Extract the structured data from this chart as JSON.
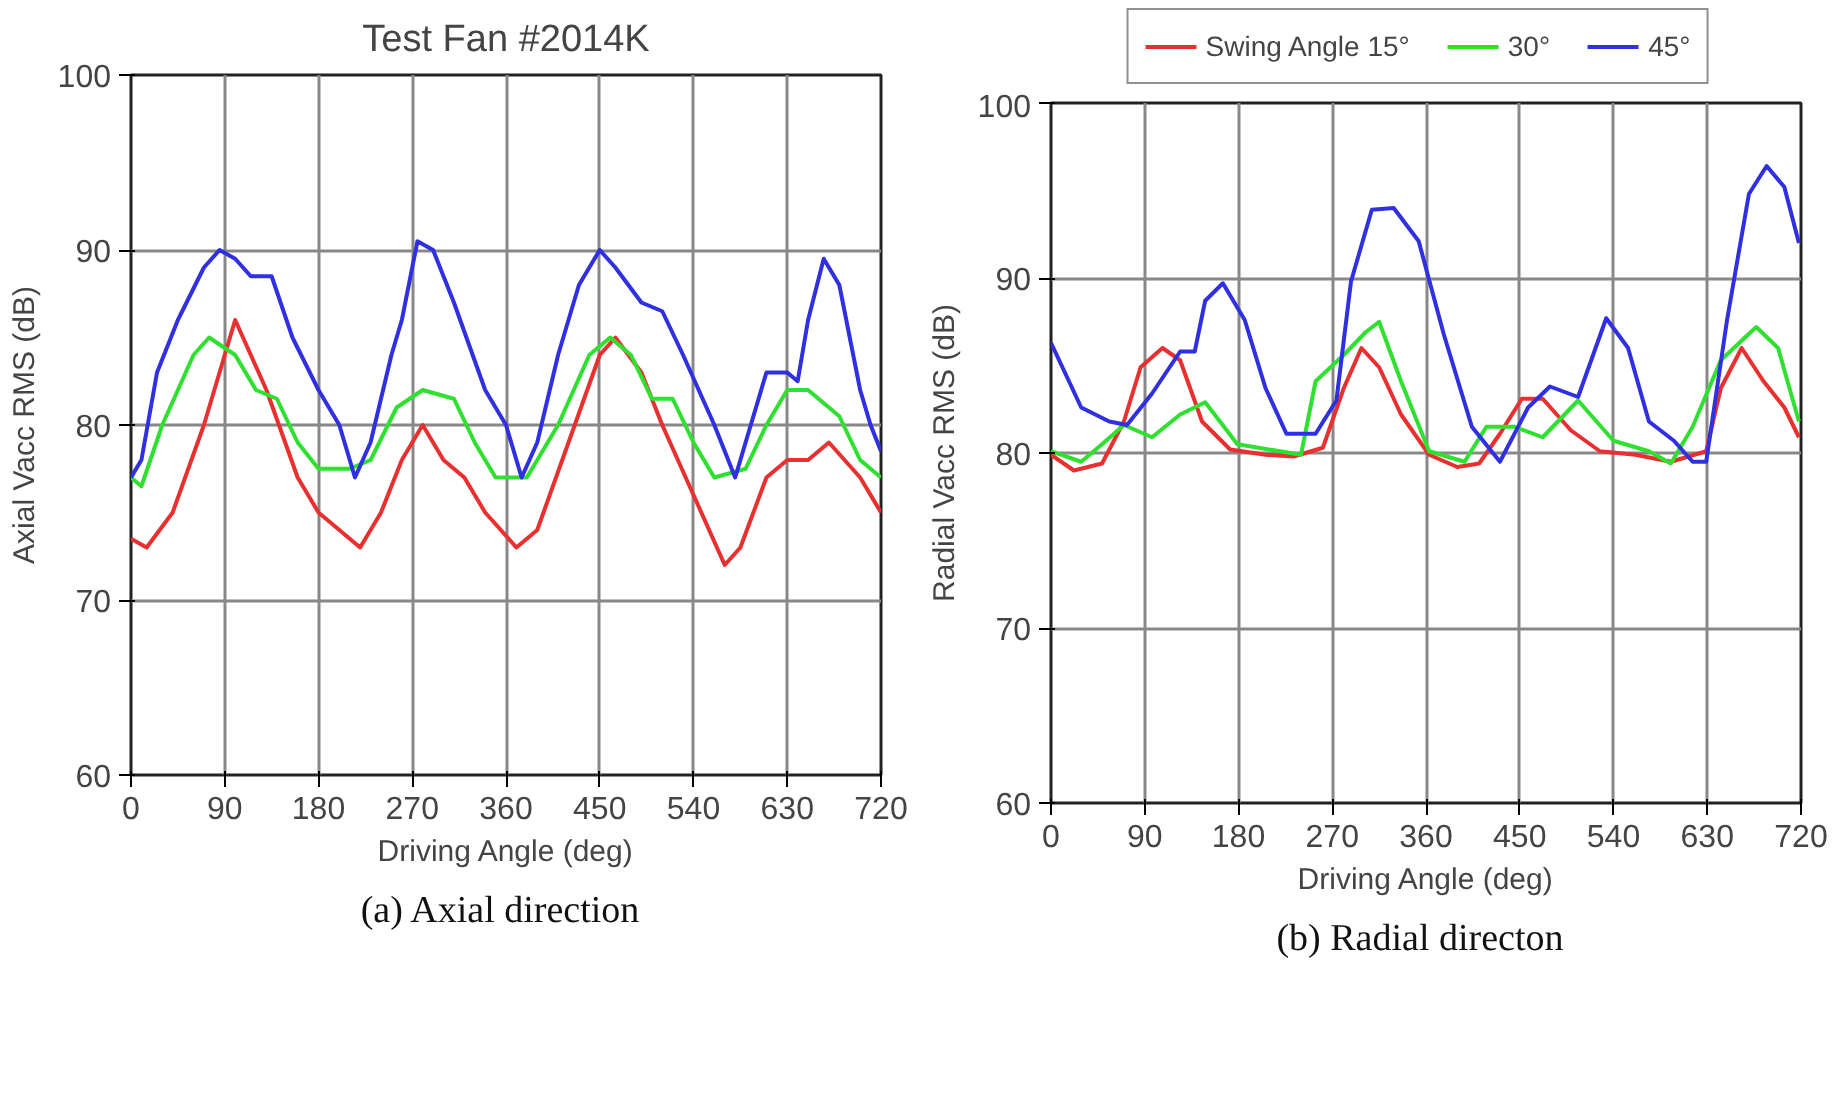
{
  "chart_data": [
    {
      "type": "line",
      "title": "Test Fan #2014K",
      "xlabel": "Driving Angle (deg)",
      "ylabel": "Axial Vacc RMS (dB)",
      "annotations": [
        "(a) Axial direction"
      ],
      "xlim": [
        0,
        720
      ],
      "ylim": [
        60,
        100
      ],
      "xticks": [
        0,
        90,
        180,
        270,
        360,
        450,
        540,
        630,
        720
      ],
      "yticks": [
        60,
        70,
        80,
        90,
        100
      ],
      "grid": true,
      "legend": false,
      "series": [
        {
          "color": "#e83030",
          "x": [
            0,
            15,
            40,
            70,
            100,
            130,
            160,
            180,
            220,
            240,
            260,
            280,
            300,
            320,
            340,
            370,
            390,
            420,
            450,
            465,
            490,
            510,
            540,
            570,
            585,
            610,
            630,
            650,
            670,
            700,
            720
          ],
          "values": [
            73.5,
            73,
            75,
            80,
            86,
            82,
            77,
            75,
            73,
            75,
            78,
            80,
            78,
            77,
            75,
            73,
            74,
            79,
            84,
            85,
            83,
            80,
            76,
            72,
            73,
            77,
            78,
            78,
            79,
            77,
            75
          ]
        },
        {
          "color": "#30e030",
          "x": [
            0,
            10,
            30,
            60,
            75,
            100,
            120,
            140,
            160,
            180,
            210,
            230,
            255,
            280,
            310,
            330,
            350,
            380,
            410,
            440,
            460,
            480,
            500,
            520,
            540,
            560,
            590,
            610,
            630,
            650,
            680,
            700,
            720
          ],
          "values": [
            77,
            76.5,
            80,
            84,
            85,
            84,
            82,
            81.5,
            79,
            77.5,
            77.5,
            78,
            81,
            82,
            81.5,
            79,
            77,
            77,
            80,
            84,
            85,
            84,
            81.5,
            81.5,
            79,
            77,
            77.5,
            80,
            82,
            82,
            80.5,
            78,
            77
          ]
        },
        {
          "color": "#3030e0",
          "x": [
            0,
            10,
            25,
            45,
            70,
            85,
            100,
            115,
            135,
            155,
            180,
            200,
            215,
            230,
            250,
            260,
            275,
            290,
            310,
            340,
            360,
            375,
            390,
            410,
            430,
            450,
            465,
            490,
            510,
            530,
            560,
            580,
            595,
            610,
            630,
            640,
            650,
            665,
            680,
            700,
            710,
            720
          ],
          "values": [
            77,
            78,
            83,
            86,
            89,
            90,
            89.5,
            88.5,
            88.5,
            85,
            82,
            80,
            77,
            79,
            84,
            86,
            90.5,
            90,
            87,
            82,
            80,
            77,
            79,
            84,
            88,
            90,
            89,
            87,
            86.5,
            84,
            80,
            77,
            80,
            83,
            83,
            82.5,
            86,
            89.5,
            88,
            82,
            80,
            78.5
          ]
        }
      ]
    },
    {
      "type": "line",
      "xlabel": "Driving Angle (deg)",
      "ylabel": "Radial Vacc RMS (dB)",
      "annotations": [
        "(b) Radial directon"
      ],
      "xlim": [
        0,
        720
      ],
      "ylim": [
        60,
        100
      ],
      "xticks": [
        0,
        90,
        180,
        270,
        360,
        450,
        540,
        630,
        720
      ],
      "yticks": [
        60,
        70,
        80,
        90,
        100
      ],
      "grid": true,
      "legend": "top",
      "series": [
        {
          "name": "Swing Angle 15°",
          "color": "#e83030",
          "x": [
            0,
            22,
            49,
            70,
            86,
            107,
            124,
            145,
            172,
            206,
            233,
            261,
            281,
            298,
            315,
            336,
            363,
            390,
            411,
            431,
            452,
            472,
            499,
            527,
            561,
            595,
            629,
            643,
            663,
            684,
            704,
            718
          ],
          "values": [
            79.9,
            79,
            79.4,
            81.8,
            84.9,
            86,
            85.3,
            81.8,
            80.2,
            79.9,
            79.8,
            80.3,
            83.7,
            86,
            84.9,
            82.2,
            79.9,
            79.2,
            79.4,
            81.1,
            83.1,
            83.1,
            81.3,
            80.1,
            79.9,
            79.5,
            80.1,
            83.7,
            86,
            84.1,
            82.6,
            80.9
          ]
        },
        {
          "name": "30°",
          "color": "#30e030",
          "x": [
            0,
            29,
            49,
            70,
            97,
            124,
            148,
            179,
            220,
            240,
            254,
            281,
            302,
            315,
            336,
            363,
            397,
            418,
            445,
            472,
            506,
            540,
            574,
            595,
            616,
            643,
            677,
            698,
            718
          ],
          "values": [
            80.1,
            79.5,
            80.5,
            81.6,
            80.9,
            82.2,
            82.9,
            80.5,
            80.1,
            79.9,
            84.1,
            85.6,
            86.9,
            87.5,
            84.1,
            80.1,
            79.5,
            81.5,
            81.5,
            80.9,
            83,
            80.7,
            80.1,
            79.4,
            81.5,
            85.3,
            87.2,
            86,
            81.8
          ]
        },
        {
          "name": "45°",
          "color": "#3030e0",
          "x": [
            0,
            29,
            56,
            73,
            97,
            124,
            138,
            148,
            165,
            186,
            206,
            226,
            254,
            274,
            288,
            308,
            329,
            353,
            377,
            404,
            431,
            458,
            479,
            506,
            533,
            554,
            574,
            598,
            616,
            629,
            649,
            670,
            687,
            704,
            718
          ],
          "values": [
            86.3,
            82.6,
            81.8,
            81.6,
            83.4,
            85.8,
            85.8,
            88.7,
            89.7,
            87.6,
            83.7,
            81.1,
            81.1,
            83,
            89.8,
            93.9,
            94,
            92.1,
            86.8,
            81.5,
            79.5,
            82.6,
            83.8,
            83.2,
            87.7,
            86,
            81.8,
            80.7,
            79.5,
            79.5,
            87.6,
            94.8,
            96.4,
            95.2,
            92
          ]
        }
      ]
    }
  ]
}
